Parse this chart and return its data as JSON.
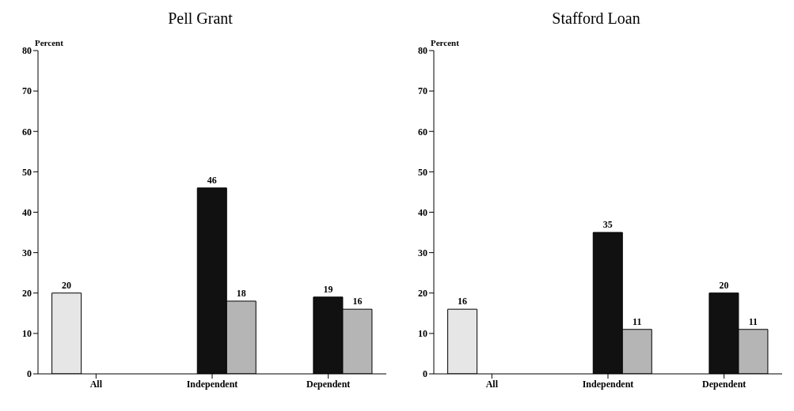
{
  "chart_data": [
    {
      "type": "bar",
      "title": "Pell Grant",
      "ylabel": "Percent",
      "categories": [
        "All",
        "Independent",
        "Dependent"
      ],
      "series": [
        {
          "color": "#e6e6e6",
          "values": [
            20,
            null,
            null
          ]
        },
        {
          "color": "#111111",
          "values": [
            null,
            46,
            19
          ]
        },
        {
          "color": "#b5b5b5",
          "values": [
            null,
            18,
            16
          ]
        }
      ],
      "ylim": [
        0,
        80
      ],
      "yticks": [
        0,
        10,
        20,
        30,
        40,
        50,
        60,
        70,
        80
      ],
      "grid": false,
      "legend": false,
      "data_labels": true
    },
    {
      "type": "bar",
      "title": "Stafford Loan",
      "ylabel": "Percent",
      "categories": [
        "All",
        "Independent",
        "Dependent"
      ],
      "series": [
        {
          "color": "#e6e6e6",
          "values": [
            16,
            null,
            null
          ]
        },
        {
          "color": "#111111",
          "values": [
            null,
            35,
            20
          ]
        },
        {
          "color": "#b5b5b5",
          "values": [
            null,
            11,
            11
          ]
        }
      ],
      "ylim": [
        0,
        80
      ],
      "yticks": [
        0,
        10,
        20,
        30,
        40,
        50,
        60,
        70,
        80
      ],
      "grid": false,
      "legend": false,
      "data_labels": true
    }
  ]
}
